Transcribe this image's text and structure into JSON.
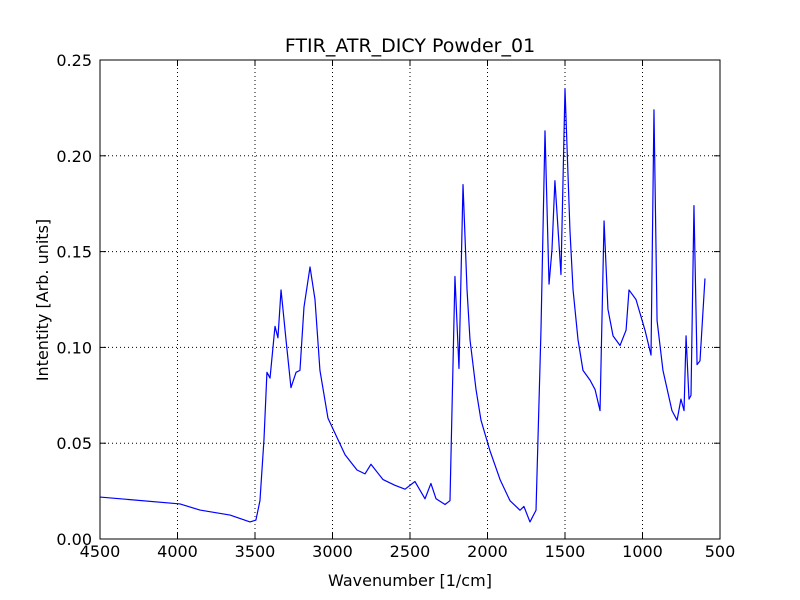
{
  "chart_data": {
    "type": "line",
    "title": "FTIR_ATR_DICY Powder_01",
    "xlabel": "Wavenumber [1/cm]",
    "ylabel": "Intentity [Arb. units]",
    "x": [
      4500,
      3984,
      3855,
      3661,
      3532,
      3494,
      3468,
      3442,
      3423,
      3403,
      3371,
      3352,
      3332,
      3300,
      3268,
      3235,
      3210,
      3184,
      3145,
      3113,
      3081,
      3029,
      2919,
      2842,
      2790,
      2752,
      2674,
      2597,
      2532,
      2468,
      2403,
      2365,
      2332,
      2274,
      2242,
      2210,
      2184,
      2158,
      2132,
      2113,
      2074,
      2042,
      1984,
      1919,
      1855,
      1790,
      1765,
      1726,
      1687,
      1655,
      1629,
      1603,
      1584,
      1565,
      1526,
      1500,
      1468,
      1448,
      1416,
      1384,
      1339,
      1306,
      1274,
      1248,
      1223,
      1190,
      1145,
      1106,
      1087,
      1042,
      984,
      945,
      926,
      906,
      868,
      810,
      777,
      752,
      732,
      719,
      700,
      687,
      668,
      648,
      629,
      597
    ],
    "series": [
      {
        "name": "Powder_01",
        "color": "#0000ff",
        "values": [
          0.0219,
          0.0183,
          0.0151,
          0.0125,
          0.0089,
          0.0099,
          0.02,
          0.052,
          0.087,
          0.084,
          0.111,
          0.105,
          0.13,
          0.104,
          0.079,
          0.087,
          0.088,
          0.121,
          0.142,
          0.125,
          0.088,
          0.063,
          0.044,
          0.036,
          0.034,
          0.039,
          0.031,
          0.028,
          0.026,
          0.03,
          0.021,
          0.029,
          0.021,
          0.018,
          0.02,
          0.137,
          0.089,
          0.185,
          0.13,
          0.104,
          0.078,
          0.062,
          0.046,
          0.031,
          0.02,
          0.015,
          0.017,
          0.0089,
          0.015,
          0.109,
          0.213,
          0.133,
          0.151,
          0.187,
          0.138,
          0.235,
          0.161,
          0.13,
          0.104,
          0.088,
          0.083,
          0.078,
          0.067,
          0.166,
          0.12,
          0.106,
          0.101,
          0.109,
          0.13,
          0.125,
          0.109,
          0.096,
          0.224,
          0.114,
          0.088,
          0.067,
          0.062,
          0.073,
          0.067,
          0.106,
          0.073,
          0.075,
          0.174,
          0.091,
          0.093,
          0.136
        ]
      }
    ],
    "xlim": [
      4500,
      500
    ],
    "xticks": [
      4500,
      4000,
      3500,
      3000,
      2500,
      2000,
      1500,
      1000,
      500
    ],
    "ylim": [
      0,
      0.25
    ],
    "yticks": [
      {
        "value": 0,
        "label": "0.00"
      },
      {
        "value": 0.05,
        "label": "0.05"
      },
      {
        "value": 0.1,
        "label": "0.10"
      },
      {
        "value": 0.15,
        "label": "0.15"
      },
      {
        "value": 0.2,
        "label": "0.20"
      },
      {
        "value": 0.25,
        "label": "0.25"
      }
    ],
    "grid": true
  }
}
